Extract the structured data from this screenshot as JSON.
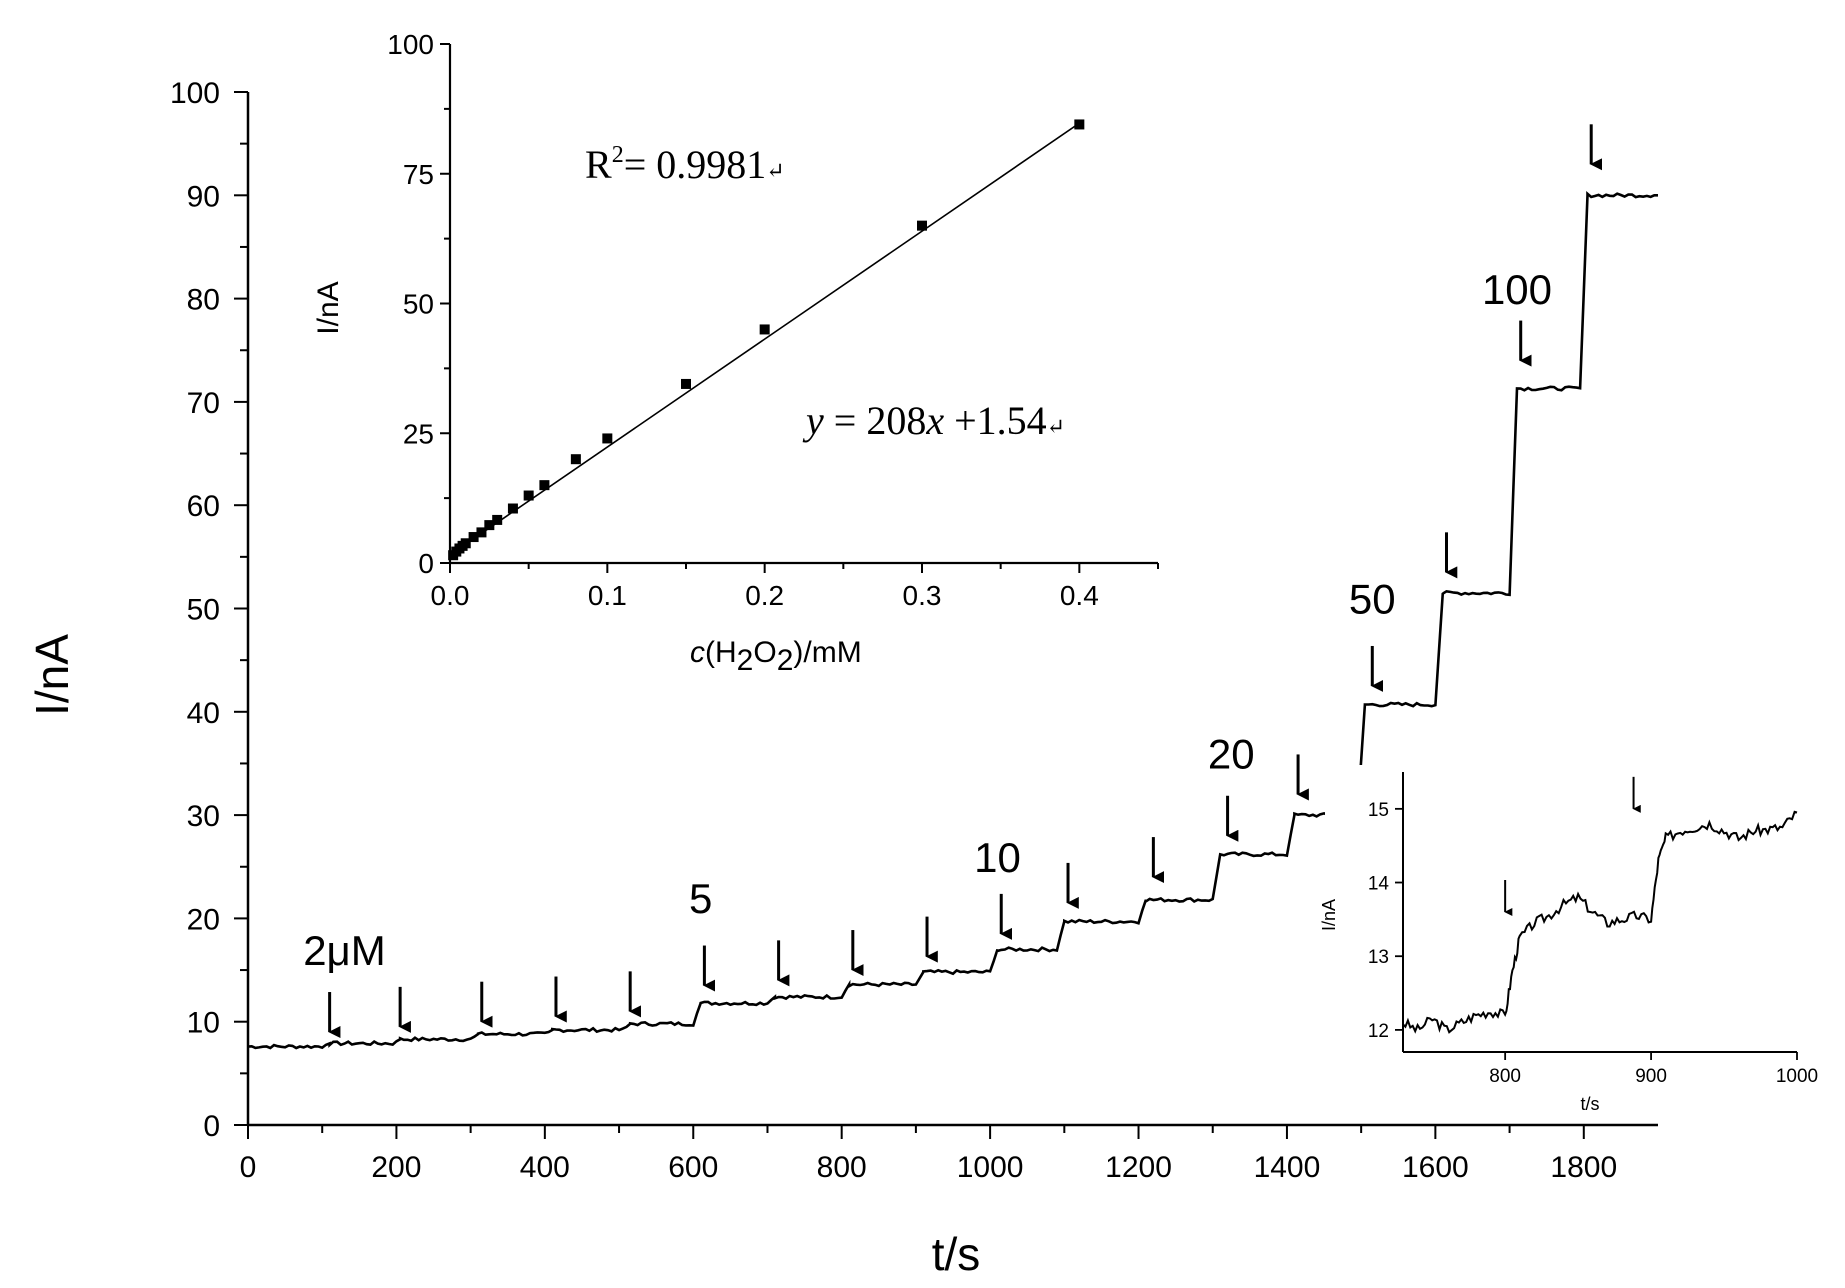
{
  "chart_data": [
    {
      "id": "main",
      "type": "line",
      "title": "",
      "xlabel": "t/s",
      "ylabel": "I/nA",
      "xlim": [
        0,
        1900
      ],
      "ylim": [
        0,
        100
      ],
      "xticks": [
        0,
        200,
        400,
        600,
        800,
        1000,
        1200,
        1400,
        1600,
        1800
      ],
      "yticks": [
        0,
        10,
        20,
        30,
        40,
        50,
        60,
        70,
        80,
        90,
        100
      ],
      "grid": false,
      "steps": [
        {
          "t": 0,
          "i": 7.6
        },
        {
          "t": 110,
          "i": 7.9
        },
        {
          "t": 205,
          "i": 8.3
        },
        {
          "t": 310,
          "i": 8.8
        },
        {
          "t": 410,
          "i": 9.2
        },
        {
          "t": 515,
          "i": 9.8
        },
        {
          "t": 610,
          "i": 11.8
        },
        {
          "t": 710,
          "i": 12.4
        },
        {
          "t": 810,
          "i": 13.6
        },
        {
          "t": 910,
          "i": 14.8
        },
        {
          "t": 1010,
          "i": 17.0
        },
        {
          "t": 1100,
          "i": 19.7
        },
        {
          "t": 1210,
          "i": 21.8
        },
        {
          "t": 1310,
          "i": 26.2
        },
        {
          "t": 1410,
          "i": 30.0
        },
        {
          "t": 1505,
          "i": 40.7
        },
        {
          "t": 1610,
          "i": 51.5
        },
        {
          "t": 1710,
          "i": 71.3
        },
        {
          "t": 1805,
          "i": 90.0
        },
        {
          "t": 1900,
          "i": 90.0
        }
      ],
      "arrows": [
        {
          "t": 110,
          "i": 9.0
        },
        {
          "t": 205,
          "i": 9.5
        },
        {
          "t": 315,
          "i": 10.0
        },
        {
          "t": 415,
          "i": 10.5
        },
        {
          "t": 515,
          "i": 11.0
        },
        {
          "t": 615,
          "i": 13.5
        },
        {
          "t": 715,
          "i": 14.0
        },
        {
          "t": 815,
          "i": 15.0
        },
        {
          "t": 915,
          "i": 16.3
        },
        {
          "t": 1015,
          "i": 18.5
        },
        {
          "t": 1105,
          "i": 21.5
        },
        {
          "t": 1220,
          "i": 24.0
        },
        {
          "t": 1320,
          "i": 28.0
        },
        {
          "t": 1415,
          "i": 32.0
        },
        {
          "t": 1515,
          "i": 42.5
        },
        {
          "t": 1615,
          "i": 53.5
        },
        {
          "t": 1715,
          "i": 74.0
        },
        {
          "t": 1810,
          "i": 93.0
        }
      ],
      "annotations": [
        {
          "text": "2μM",
          "t": 130,
          "i": 15.5
        },
        {
          "text": "5",
          "t": 610,
          "i": 20.5
        },
        {
          "text": "10",
          "t": 1010,
          "i": 24.5
        },
        {
          "text": "20",
          "t": 1325,
          "i": 34.5
        },
        {
          "text": "50",
          "t": 1515,
          "i": 49.5
        },
        {
          "text": "100",
          "t": 1710,
          "i": 79.5
        }
      ]
    },
    {
      "id": "calibration",
      "type": "scatter",
      "title": "",
      "xlabel": "c(H2O2)/mM",
      "xlabel_parts": {
        "c": "c",
        "open": "(H",
        "sub1": "2",
        "mid": "O",
        "sub2": "2",
        "close": ")/mM"
      },
      "ylabel": "I/nA",
      "xlim": [
        0,
        0.45
      ],
      "ylim": [
        0,
        100
      ],
      "xticks": [
        "0.0",
        "0.1",
        "0.2",
        "0.3",
        "0.4"
      ],
      "yticks": [
        "0",
        "25",
        "50",
        "75",
        "100"
      ],
      "points": [
        {
          "x": 0.002,
          "y": 1.5
        },
        {
          "x": 0.004,
          "y": 2.2
        },
        {
          "x": 0.006,
          "y": 2.8
        },
        {
          "x": 0.008,
          "y": 3.3
        },
        {
          "x": 0.01,
          "y": 3.8
        },
        {
          "x": 0.015,
          "y": 5.0
        },
        {
          "x": 0.02,
          "y": 5.9
        },
        {
          "x": 0.025,
          "y": 7.3
        },
        {
          "x": 0.03,
          "y": 8.3
        },
        {
          "x": 0.04,
          "y": 10.5
        },
        {
          "x": 0.05,
          "y": 13.0
        },
        {
          "x": 0.06,
          "y": 15.0
        },
        {
          "x": 0.08,
          "y": 20.0
        },
        {
          "x": 0.1,
          "y": 24.0
        },
        {
          "x": 0.15,
          "y": 34.5
        },
        {
          "x": 0.2,
          "y": 45.0
        },
        {
          "x": 0.3,
          "y": 65.0
        },
        {
          "x": 0.4,
          "y": 84.5
        }
      ],
      "fit": {
        "slope": 208,
        "intercept": 1.54,
        "x_from": 0,
        "x_to": 0.4
      },
      "r2_label": "R",
      "r2_sup": "2",
      "r2_value": "= 0.9981",
      "equation_y": "y",
      "equation_mid": " = 208",
      "equation_x": "x",
      "equation_tail": " +1.54",
      "return_mark": "↵"
    },
    {
      "id": "zoom",
      "type": "line",
      "title": "",
      "xlabel": "t/s",
      "ylabel": "I/nA",
      "xlim": [
        730,
        1000
      ],
      "ylim": [
        11.7,
        15.5
      ],
      "xticks": [
        "800",
        "900",
        "1000"
      ],
      "yticks": [
        "12",
        "13",
        "14",
        "15"
      ],
      "trace": [
        {
          "t": 730,
          "i": 12.1
        },
        {
          "t": 740,
          "i": 12.0
        },
        {
          "t": 750,
          "i": 12.15
        },
        {
          "t": 760,
          "i": 12.0
        },
        {
          "t": 770,
          "i": 12.1
        },
        {
          "t": 780,
          "i": 12.2
        },
        {
          "t": 790,
          "i": 12.25
        },
        {
          "t": 800,
          "i": 12.2
        },
        {
          "t": 805,
          "i": 12.8
        },
        {
          "t": 810,
          "i": 13.25
        },
        {
          "t": 820,
          "i": 13.45
        },
        {
          "t": 830,
          "i": 13.55
        },
        {
          "t": 840,
          "i": 13.7
        },
        {
          "t": 850,
          "i": 13.8
        },
        {
          "t": 860,
          "i": 13.6
        },
        {
          "t": 870,
          "i": 13.45
        },
        {
          "t": 880,
          "i": 13.5
        },
        {
          "t": 890,
          "i": 13.55
        },
        {
          "t": 900,
          "i": 13.5
        },
        {
          "t": 905,
          "i": 14.3
        },
        {
          "t": 910,
          "i": 14.6
        },
        {
          "t": 920,
          "i": 14.7
        },
        {
          "t": 930,
          "i": 14.75
        },
        {
          "t": 940,
          "i": 14.8
        },
        {
          "t": 950,
          "i": 14.7
        },
        {
          "t": 960,
          "i": 14.6
        },
        {
          "t": 970,
          "i": 14.7
        },
        {
          "t": 980,
          "i": 14.72
        },
        {
          "t": 990,
          "i": 14.75
        },
        {
          "t": 1000,
          "i": 14.95
        }
      ],
      "arrows": [
        {
          "t": 800,
          "i": 13.6
        },
        {
          "t": 888,
          "i": 15.0
        }
      ]
    }
  ]
}
